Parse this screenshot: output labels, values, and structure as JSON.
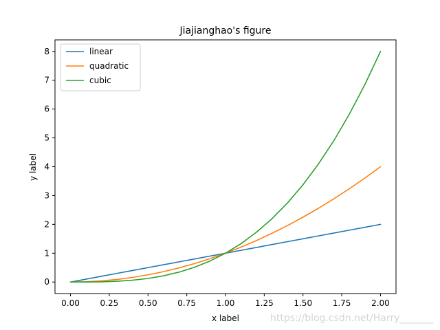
{
  "chart_data": {
    "type": "line",
    "title": "Jiajianghao's figure",
    "xlabel": "x label",
    "ylabel": "y label",
    "xlim": [
      -0.1,
      2.1
    ],
    "ylim": [
      -0.4,
      8.4
    ],
    "xticks": [
      0.0,
      0.25,
      0.5,
      0.75,
      1.0,
      1.25,
      1.5,
      1.75,
      2.0
    ],
    "xtick_labels": [
      "0.00",
      "0.25",
      "0.50",
      "0.75",
      "1.00",
      "1.25",
      "1.50",
      "1.75",
      "2.00"
    ],
    "yticks": [
      0,
      1,
      2,
      3,
      4,
      5,
      6,
      7,
      8
    ],
    "ytick_labels": [
      "0",
      "1",
      "2",
      "3",
      "4",
      "5",
      "6",
      "7",
      "8"
    ],
    "grid": false,
    "legend": "top-left",
    "x": [
      0.0,
      0.1,
      0.2,
      0.3,
      0.4,
      0.5,
      0.6,
      0.7,
      0.8,
      0.9,
      1.0,
      1.1,
      1.2,
      1.3,
      1.4,
      1.5,
      1.6,
      1.7,
      1.8,
      1.9,
      2.0
    ],
    "series": [
      {
        "name": "linear",
        "color": "#1f77b4",
        "values": [
          0.0,
          0.1,
          0.2,
          0.3,
          0.4,
          0.5,
          0.6,
          0.7,
          0.8,
          0.9,
          1.0,
          1.1,
          1.2,
          1.3,
          1.4,
          1.5,
          1.6,
          1.7,
          1.8,
          1.9,
          2.0
        ]
      },
      {
        "name": "quadratic",
        "color": "#ff7f0e",
        "values": [
          0.0,
          0.01,
          0.04,
          0.09,
          0.16,
          0.25,
          0.36,
          0.49,
          0.64,
          0.81,
          1.0,
          1.21,
          1.44,
          1.69,
          1.96,
          2.25,
          2.56,
          2.89,
          3.24,
          3.61,
          4.0
        ]
      },
      {
        "name": "cubic",
        "color": "#2ca02c",
        "values": [
          0.0,
          0.001,
          0.008,
          0.027,
          0.064,
          0.125,
          0.216,
          0.343,
          0.512,
          0.729,
          1.0,
          1.331,
          1.728,
          2.197,
          2.744,
          3.375,
          4.096,
          4.913,
          5.832,
          6.859,
          8.0
        ]
      }
    ]
  },
  "watermark": "https://blog.csdn.net/Harry_______"
}
